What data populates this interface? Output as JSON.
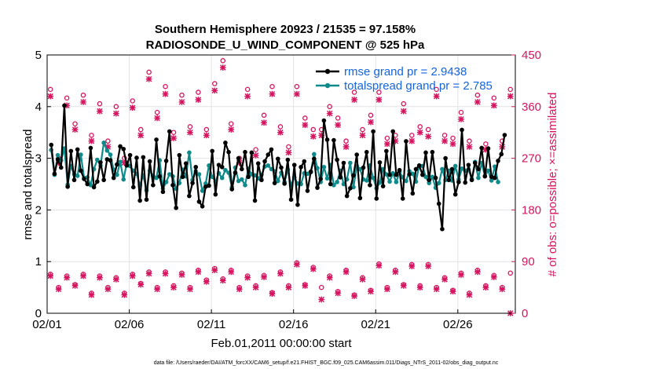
{
  "chart_data": {
    "type": "line",
    "title": "Southern Hemisphere 20923 / 21535 = 97.158%",
    "subtitle": "RADIOSONDE_U_WIND_COMPONENT @ 525 hPa",
    "xlabel": "Feb.01,2011 00:00:00 start",
    "ylabel": "rmse and totalspread",
    "ylabel_right": "# of obs: o=possible; ×=assimilated",
    "xlim": [
      0,
      28.5
    ],
    "ylim": [
      0,
      5
    ],
    "ylim_right": [
      0,
      450
    ],
    "x_ticks": [
      0,
      5,
      10,
      15,
      20,
      25
    ],
    "x_tick_labels": [
      "02/01",
      "02/06",
      "02/11",
      "02/16",
      "02/21",
      "02/26"
    ],
    "y_ticks": [
      0,
      1,
      2,
      3,
      4,
      5
    ],
    "y_tick_labels": [
      "0",
      "1",
      "2",
      "3",
      "4",
      "5"
    ],
    "y_right_ticks": [
      0,
      90,
      180,
      270,
      360,
      450
    ],
    "y_right_tick_labels": [
      "0",
      "90",
      "180",
      "270",
      "360",
      "450"
    ],
    "colors": {
      "rmse": "#000000",
      "spread": "#0f8a8a",
      "obs": "#d6145f",
      "legend_text": "#1565e0"
    },
    "series": [
      {
        "name": "rmse grand pr = 2.9438",
        "color": "#000000",
        "values": [
          3.26,
          2.7,
          2.98,
          2.82,
          4.02,
          2.45,
          3.14,
          2.58,
          3.17,
          2.76,
          2.6,
          2.5,
          3.2,
          2.44,
          2.55,
          2.92,
          2.58,
          2.98,
          2.96,
          2.62,
          2.88,
          3.23,
          3.18,
          2.86,
          3.06,
          2.44,
          3.01,
          2.18,
          3.02,
          2.2,
          2.94,
          2.48,
          3.36,
          2.65,
          2.35,
          2.95,
          3.52,
          2.48,
          2.04,
          3.06,
          2.64,
          2.9,
          2.27,
          2.52,
          2.83,
          2.16,
          2.07,
          2.45,
          2.47,
          3.14,
          2.3,
          2.87,
          2.83,
          3.3,
          3.12,
          2.4,
          2.72,
          3.0,
          2.79,
          3.12,
          2.64,
          3.11,
          2.18,
          2.9,
          2.58,
          2.94,
          3.07,
          3.17,
          2.52,
          2.99,
          2.82,
          2.51,
          2.97,
          2.2,
          2.87,
          2.1,
          2.83,
          2.94,
          2.37,
          2.74,
          2.99,
          2.43,
          2.6,
          3.73,
          3.36,
          2.5,
          3.35,
          2.97,
          2.63,
          2.91,
          2.27,
          2.42,
          2.67,
          3.07,
          2.23,
          2.82,
          3.12,
          2.48,
          3.52,
          2.22,
          2.92,
          2.46,
          3.14,
          2.68,
          3.52,
          2.68,
          2.77,
          2.22,
          3.33,
          2.69,
          2.32,
          2.79,
          2.86,
          2.68,
          3.11,
          2.58,
          3.12,
          2.62,
          2.12,
          1.63,
          3.0,
          2.58,
          2.79,
          2.3,
          2.54,
          3.55,
          2.53,
          2.87,
          2.58,
          2.91,
          2.79,
          3.2,
          2.65,
          3.19,
          2.64,
          2.62,
          2.95,
          3.08,
          3.45
        ]
      },
      {
        "name": "totalspread grand pr = 2.785",
        "color": "#0f8a8a",
        "values": [
          3.16,
          2.68,
          3.06,
          2.96,
          3.19,
          2.49,
          2.85,
          2.69,
          2.66,
          3.07,
          2.62,
          2.63,
          2.48,
          2.79,
          2.97,
          2.86,
          3.3,
          3.15,
          3.07,
          2.78,
          2.68,
          2.93,
          2.59,
          2.91,
          2.85,
          2.76,
          2.7,
          2.48,
          2.67,
          2.38,
          2.76,
          2.66,
          2.62,
          2.96,
          2.41,
          2.54,
          2.69,
          2.65,
          2.41,
          2.52,
          2.78,
          2.65,
          3.11,
          2.58,
          2.75,
          2.69,
          2.37,
          2.51,
          2.86,
          2.64,
          2.55,
          2.71,
          2.62,
          2.77,
          2.72,
          2.44,
          2.82,
          2.56,
          2.59,
          2.48,
          2.8,
          2.69,
          2.67,
          2.61,
          2.68,
          2.84,
          2.86,
          2.79,
          2.75,
          2.56,
          2.72,
          2.54,
          2.78,
          2.47,
          2.63,
          2.51,
          2.5,
          2.71,
          2.7,
          2.73,
          3.08,
          2.81,
          2.54,
          2.83,
          2.61,
          2.87,
          2.48,
          2.54,
          2.76,
          2.5,
          2.59,
          2.91,
          2.44,
          2.85,
          2.79,
          2.59,
          2.57,
          2.86,
          2.62,
          2.42,
          2.53,
          2.79,
          2.69,
          2.55,
          2.71,
          2.54,
          2.73,
          2.63,
          2.56,
          2.75,
          2.7,
          2.55,
          2.86,
          2.85,
          2.64,
          2.52,
          2.64,
          2.43,
          2.52,
          2.79,
          2.58,
          2.76,
          2.57,
          2.85,
          2.59,
          2.8,
          2.76,
          2.78,
          2.6,
          2.93,
          2.62,
          2.91,
          2.66,
          2.76,
          2.57,
          2.84,
          2.54
        ]
      },
      {
        "name": "obs possible (○) upper cluster",
        "color": "#d6145f",
        "axis": "right",
        "x": [
          0.2,
          0.7,
          1.2,
          1.7,
          2.2,
          2.7,
          3.2,
          3.7,
          4.2,
          4.7,
          5.2,
          5.7,
          6.2,
          6.7,
          7.2,
          7.7,
          8.2,
          8.7,
          9.2,
          9.7,
          10.2,
          10.7,
          11.2,
          11.7,
          12.2,
          12.7,
          13.2,
          13.7,
          14.2,
          14.7,
          15.2,
          15.7,
          16.2,
          16.7,
          17.2,
          17.7,
          18.2,
          18.7,
          19.2,
          19.7,
          20.2,
          20.7,
          21.2,
          21.7,
          22.2,
          22.7,
          23.2,
          23.7,
          24.2,
          24.7,
          25.2,
          25.7,
          26.2,
          26.7,
          27.2,
          27.7,
          28.2
        ],
        "values": [
          390,
          270,
          375,
          330,
          380,
          310,
          365,
          300,
          360,
          270,
          370,
          320,
          420,
          350,
          395,
          315,
          380,
          325,
          385,
          320,
          400,
          440,
          330,
          270,
          390,
          285,
          345,
          395,
          325,
          290,
          395,
          340,
          320,
          320,
          360,
          340,
          300,
          385,
          320,
          345,
          385,
          305,
          310,
          365,
          310,
          325,
          320,
          390,
          310,
          305,
          350,
          300,
          380,
          295,
          375,
          300,
          390
        ]
      },
      {
        "name": "obs assimilated (×) upper cluster",
        "color": "#d6145f",
        "axis": "right",
        "x": [
          0.2,
          0.7,
          1.2,
          1.7,
          2.2,
          2.7,
          3.2,
          3.7,
          4.2,
          4.7,
          5.2,
          5.7,
          6.2,
          6.7,
          7.2,
          7.7,
          8.2,
          8.7,
          9.2,
          9.7,
          10.2,
          10.7,
          11.2,
          11.7,
          12.2,
          12.7,
          13.2,
          13.7,
          14.2,
          14.7,
          15.2,
          15.7,
          16.2,
          16.7,
          17.2,
          17.7,
          18.2,
          18.7,
          19.2,
          19.7,
          20.2,
          20.7,
          21.2,
          21.7,
          22.2,
          22.7,
          23.2,
          23.7,
          24.2,
          24.7,
          25.2,
          25.7,
          26.2,
          26.7,
          27.2,
          27.7,
          28.2
        ],
        "values": [
          378,
          262,
          362,
          320,
          368,
          300,
          352,
          290,
          348,
          262,
          358,
          310,
          408,
          340,
          382,
          305,
          368,
          315,
          372,
          310,
          388,
          428,
          320,
          262,
          378,
          275,
          332,
          382,
          315,
          280,
          382,
          328,
          308,
          310,
          348,
          328,
          290,
          372,
          310,
          333,
          372,
          295,
          300,
          352,
          300,
          315,
          308,
          378,
          300,
          295,
          338,
          290,
          368,
          285,
          362,
          290,
          378
        ]
      },
      {
        "name": "obs possible (○) lower cluster",
        "color": "#d6145f",
        "axis": "right",
        "x": [
          0.2,
          0.7,
          1.2,
          1.7,
          2.2,
          2.7,
          3.2,
          3.7,
          4.2,
          4.7,
          5.2,
          5.7,
          6.2,
          6.7,
          7.2,
          7.7,
          8.2,
          8.7,
          9.2,
          9.7,
          10.2,
          10.7,
          11.2,
          11.7,
          12.2,
          12.7,
          13.2,
          13.7,
          14.2,
          14.7,
          15.2,
          15.7,
          16.2,
          16.7,
          17.2,
          17.7,
          18.2,
          18.7,
          19.2,
          19.7,
          20.2,
          20.7,
          21.2,
          21.7,
          22.2,
          22.7,
          23.2,
          23.7,
          24.2,
          24.7,
          25.2,
          25.7,
          26.2,
          26.7,
          27.2,
          27.7,
          28.2
        ],
        "values": [
          68,
          45,
          65,
          50,
          68,
          35,
          65,
          45,
          62,
          35,
          68,
          52,
          72,
          45,
          72,
          48,
          70,
          45,
          75,
          58,
          78,
          60,
          75,
          45,
          65,
          48,
          66,
          36,
          72,
          48,
          88,
          50,
          80,
          45,
          65,
          38,
          75,
          32,
          62,
          40,
          86,
          45,
          75,
          50,
          85,
          48,
          85,
          45,
          62,
          40,
          70,
          35,
          75,
          48,
          66,
          45,
          70
        ]
      },
      {
        "name": "obs assimilated (×) lower cluster",
        "color": "#d6145f",
        "axis": "right",
        "x": [
          0.2,
          0.7,
          1.2,
          1.7,
          2.2,
          2.7,
          3.2,
          3.7,
          4.2,
          4.7,
          5.2,
          5.7,
          6.2,
          6.7,
          7.2,
          7.7,
          8.2,
          8.7,
          9.2,
          9.7,
          10.2,
          10.7,
          11.2,
          11.7,
          12.2,
          12.7,
          13.2,
          13.7,
          14.2,
          14.7,
          15.2,
          15.7,
          16.2,
          16.7,
          17.2,
          17.7,
          18.2,
          18.7,
          19.2,
          19.7,
          20.2,
          20.7,
          21.2,
          21.7,
          22.2,
          22.7,
          23.2,
          23.7,
          24.2,
          24.7,
          25.2,
          25.7,
          26.2,
          26.7,
          27.2,
          27.7,
          28.2
        ],
        "values": [
          65,
          42,
          62,
          48,
          65,
          32,
          62,
          42,
          59,
          32,
          65,
          50,
          69,
          42,
          69,
          45,
          67,
          42,
          72,
          55,
          75,
          57,
          72,
          42,
          62,
          45,
          63,
          34,
          69,
          45,
          85,
          48,
          77,
          24,
          62,
          35,
          72,
          30,
          59,
          38,
          83,
          42,
          72,
          48,
          82,
          45,
          82,
          42,
          59,
          38,
          67,
          32,
          72,
          45,
          63,
          42,
          0
        ]
      }
    ],
    "legend": [
      "rmse grand pr = 2.9438",
      "totalspread grand pr = 2.785"
    ],
    "legend_position": "top-right",
    "grid": true
  },
  "footer": {
    "data_file": "data file: /Users/raeder/DAI/ATM_forcXX/CAM6_setup/f.e21.FHIST_BGC.f09_025.CAM6assim.011/Diags_NTrS_2011-02/obs_diag_output.nc"
  }
}
